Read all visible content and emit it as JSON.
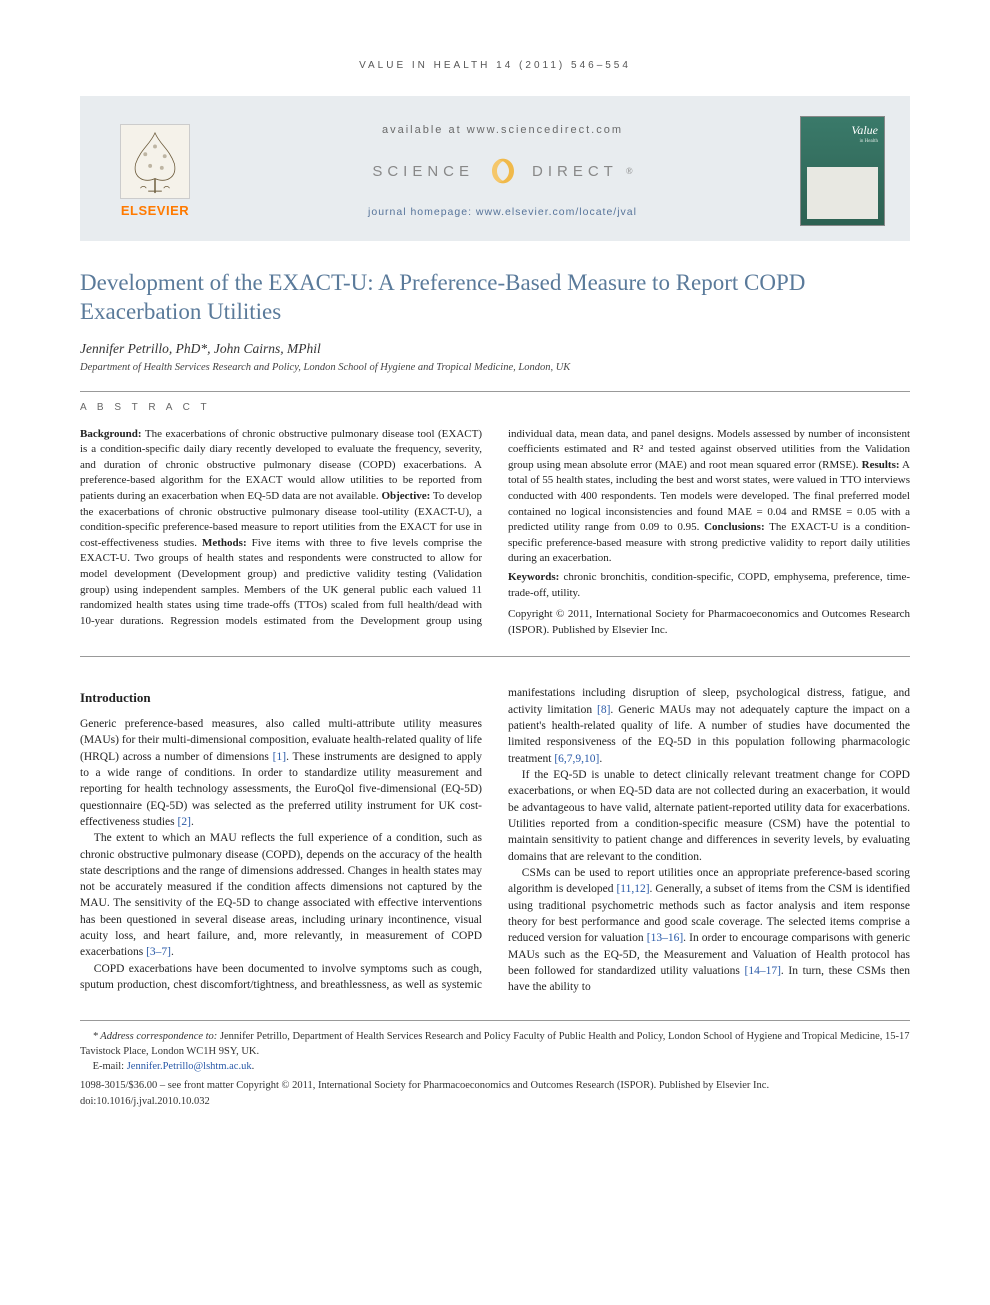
{
  "runningHead": "VALUE IN HEALTH 14 (2011) 546–554",
  "header": {
    "elsevierLabel": "ELSEVIER",
    "availableAt": "available at www.sciencedirect.com",
    "scienceLeft": "SCIENCE",
    "scienceRight": "DIRECT",
    "reg": "®",
    "homepagePrefix": "journal homepage: ",
    "homepageUrl": "www.elsevier.com/locate/jval",
    "coverTitle": "Value",
    "coverSub": "in Health"
  },
  "article": {
    "title": "Development of the EXACT-U: A Preference-Based Measure to Report COPD Exacerbation Utilities",
    "authors": "Jennifer Petrillo, PhD*, John Cairns, MPhil",
    "affiliation": "Department of Health Services Research and Policy, London School of Hygiene and Tropical Medicine, London, UK"
  },
  "abstractLabel": "A B S T R A C T",
  "abstract": {
    "p1": "Background: The exacerbations of chronic obstructive pulmonary disease tool (EXACT) is a condition-specific daily diary recently developed to evaluate the frequency, severity, and duration of chronic obstructive pulmonary disease (COPD) exacerbations. A preference-based algorithm for the EXACT would allow utilities to be reported from patients during an exacerbation when EQ-5D data are not available. Objective: To develop the exacerbations of chronic obstructive pulmonary disease tool-utility (EXACT-U), a condition-specific preference-based measure to report utilities from the EXACT for use in cost-effectiveness studies. Methods: Five items with three to five levels comprise the EXACT-U. Two groups of health states and respondents were constructed to allow for model development (Development group) and predictive validity testing (Validation group) using independent samples. Members of the UK general public each valued 11 randomized health states using time trade-offs (TTOs) scaled from full health/dead with 10-year durations. Regression models estimated from the Development group using individual data, mean data, and panel designs. Models assessed by number of inconsistent coefficients estimated and R² and tested against observed utilities from the Validation group using mean absolute error (MAE) and root mean squared error (RMSE). Results: A total of 55 health states, including the best and worst states, were valued in TTO interviews conducted with 400 respondents. Ten models were developed. The final preferred model contained no logical inconsistencies and found MAE = 0.04 and RMSE = 0.05 with a predicted utility range from 0.09 to 0.95. Conclusions: The EXACT-U is a condition-specific preference-based measure with strong predictive validity to report daily utilities during an exacerbation.",
    "keywordsLabel": "Keywords:",
    "keywords": " chronic bronchitis, condition-specific, COPD, emphysema, preference, time-trade-off, utility.",
    "copyright": "Copyright © 2011, International Society for Pharmacoeconomics and Outcomes Research (ISPOR). Published by Elsevier Inc."
  },
  "intro": {
    "heading": "Introduction",
    "p1a": "Generic preference-based measures, also called multi-attribute utility measures (MAUs) for their multi-dimensional composition, evaluate health-related quality of life (HRQL) across a number of dimensions ",
    "r1": "[1]",
    "p1b": ". These instruments are designed to apply to a wide range of conditions. In order to standardize utility measurement and reporting for health technology assessments, the EuroQol five-dimensional (EQ-5D) questionnaire (EQ-5D) was selected as the preferred utility instrument for UK cost-effectiveness studies ",
    "r2": "[2]",
    "p1c": ".",
    "p2a": "The extent to which an MAU reflects the full experience of a condition, such as chronic obstructive pulmonary disease (COPD), depends on the accuracy of the health state descriptions and the range of dimensions addressed. Changes in health states may not be accurately measured if the condition affects dimensions not captured by the MAU. The sensitivity of the EQ-5D to change associated with effective interventions has been questioned in several disease areas, including urinary incontinence, visual acuity loss, and heart failure, and, more relevantly, in measurement of COPD exacerbations ",
    "r3": "[3–7]",
    "p2b": ".",
    "p3a": "COPD exacerbations have been documented to involve symptoms such as cough, sputum production, chest discomfort/tightness, and breathlessness, as well as systemic manifestations including disruption of sleep, psychological distress, fatigue, and activity limitation ",
    "r8": "[8]",
    "p3b": ". Generic MAUs may not adequately capture the impact on a patient's health-related quality of life. A number of studies have documented the limited responsiveness of the EQ-5D in this population following pharmacologic treatment ",
    "r6": "[6,7,9,10]",
    "p3c": ".",
    "p4a": "If the EQ-5D is unable to detect clinically relevant treatment change for COPD exacerbations, or when EQ-5D data are not collected during an exacerbation, it would be advantageous to have valid, alternate patient-reported utility data for exacerbations. Utilities reported from a condition-specific measure (CSM) have the potential to maintain sensitivity to patient change and differences in severity levels, by evaluating domains that are relevant to the condition.",
    "p5a": "CSMs can be used to report utilities once an appropriate preference-based scoring algorithm is developed ",
    "r11": "[11,12]",
    "p5b": ". Generally, a subset of items from the CSM is identified using traditional psychometric methods such as factor analysis and item response theory for best performance and good scale coverage. The selected items comprise a reduced version for valuation ",
    "r13": "[13–16]",
    "p5c": ". In order to encourage comparisons with generic MAUs such as the EQ-5D, the Measurement and Valuation of Health protocol has been followed for standardized utility valuations ",
    "r14": "[14–17]",
    "p5d": ". In turn, these CSMs then have the ability to"
  },
  "footnotes": {
    "corrLabel": "* Address correspondence to:",
    "corr": " Jennifer Petrillo, Department of Health Services Research and Policy Faculty of Public Health and Policy, London School of Hygiene and Tropical Medicine, 15-17 Tavistock Place, London WC1H 9SY, UK.",
    "emailLabel": "E-mail: ",
    "email": "Jennifer.Petrillo@lshtm.ac.uk",
    "emailPeriod": ".",
    "issn": "1098-3015/$36.00 – see front matter Copyright © 2011, International Society for Pharmacoeconomics and Outcomes Research (ISPOR). Published by Elsevier Inc.",
    "doi": "doi:10.1016/j.jval.2010.10.032"
  },
  "colors": {
    "titleColor": "#5a7a9a",
    "linkColor": "#2a5aa8",
    "elsevierOrange": "#ff7a00",
    "headerBg": "#e8ecef",
    "coverBg": "#3a7a6a"
  }
}
